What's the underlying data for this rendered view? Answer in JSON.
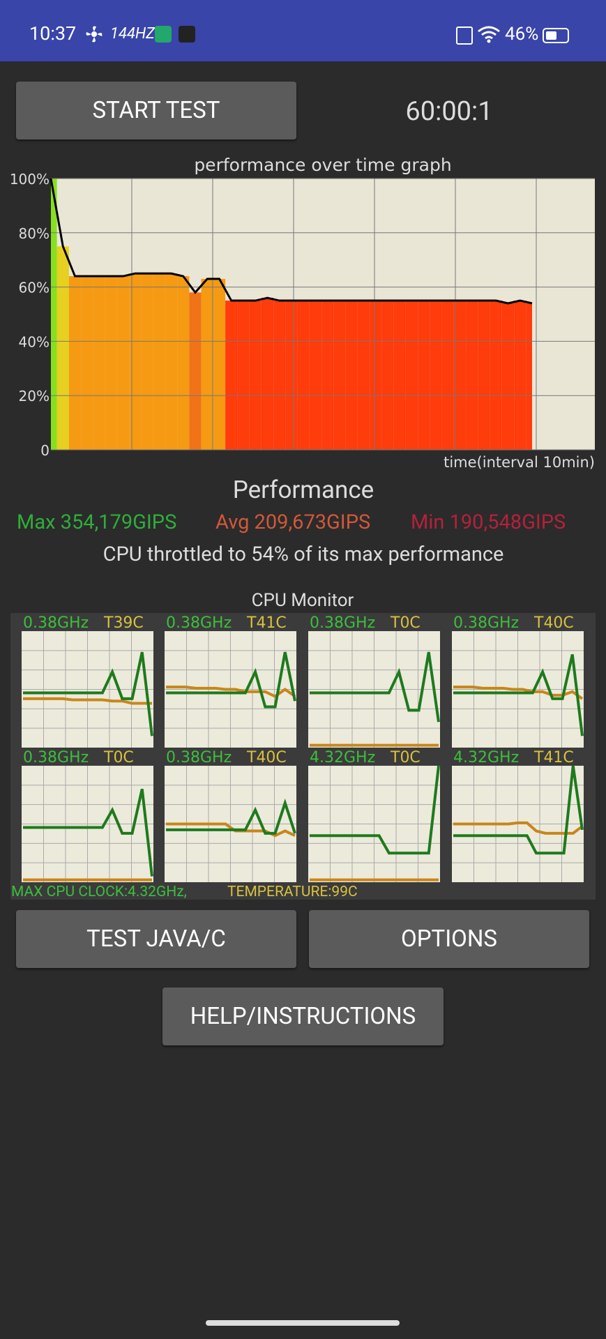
{
  "status_bar": {
    "time": "10:37",
    "refresh_rate": "144HZ",
    "battery": "46%"
  },
  "controls": {
    "start_button": "START TEST",
    "timer": "60:00:1"
  },
  "chart_data": {
    "type": "line",
    "title": "performance over time graph",
    "x_label": "time(interval 10min)",
    "ylim": [
      0,
      100
    ],
    "yticks": [
      0,
      {
        "value": 20,
        "label": "20%"
      },
      {
        "value": 40,
        "label": "40%"
      },
      {
        "value": 60,
        "label": "60%"
      },
      {
        "value": 80,
        "label": "80%"
      },
      {
        "value": 100,
        "label": "100%"
      }
    ],
    "grid": true,
    "color": "#000000",
    "values": [
      100,
      75,
      64,
      64,
      64,
      64,
      64,
      65,
      65,
      65,
      65,
      64,
      58,
      63,
      63,
      55,
      55,
      55,
      56,
      55,
      55,
      55,
      55,
      55,
      55,
      55,
      55,
      55,
      55,
      55,
      55,
      55,
      55,
      55,
      55,
      55,
      55,
      55,
      54,
      55,
      54
    ]
  },
  "performance": {
    "heading": "Performance",
    "max": "Max 354,179GIPS",
    "avg": "Avg 209,673GIPS",
    "min": "Min 190,548GIPS",
    "summary": "CPU throttled to 54% of its max performance"
  },
  "cpu_monitor": {
    "title": "CPU Monitor",
    "cores": [
      {
        "clock": "0.38GHz",
        "temp": "T39C",
        "clock_trace": [
          47,
          47,
          47,
          47,
          47,
          47,
          47,
          47,
          47,
          65,
          42,
          42,
          82,
          10
        ],
        "temp_trace": [
          42,
          42,
          42,
          42,
          42,
          41,
          41,
          41,
          41,
          40,
          40,
          38,
          38,
          38
        ]
      },
      {
        "clock": "0.38GHz",
        "temp": "T41C",
        "clock_trace": [
          47,
          47,
          47,
          47,
          47,
          47,
          47,
          47,
          47,
          65,
          35,
          35,
          82,
          40
        ],
        "temp_trace": [
          52,
          52,
          52,
          51,
          51,
          51,
          50,
          50,
          48,
          48,
          48,
          44,
          50,
          44
        ]
      },
      {
        "clock": "0.38GHz",
        "temp": "T0C",
        "clock_trace": [
          47,
          47,
          47,
          47,
          47,
          47,
          47,
          47,
          47,
          65,
          32,
          32,
          82,
          22
        ],
        "temp_trace": [
          2,
          2,
          2,
          2,
          2,
          2,
          2,
          2,
          2,
          2,
          2,
          2,
          2,
          2
        ]
      },
      {
        "clock": "0.38GHz",
        "temp": "T40C",
        "clock_trace": [
          47,
          47,
          47,
          47,
          47,
          47,
          47,
          47,
          47,
          65,
          42,
          42,
          80,
          10
        ],
        "temp_trace": [
          52,
          52,
          52,
          51,
          51,
          51,
          50,
          50,
          48,
          48,
          45,
          45,
          48,
          42
        ]
      },
      {
        "clock": "0.38GHz",
        "temp": "T0C",
        "clock_trace": [
          47,
          47,
          47,
          47,
          47,
          47,
          47,
          47,
          47,
          62,
          42,
          42,
          80,
          5
        ],
        "temp_trace": [
          2,
          2,
          2,
          2,
          2,
          2,
          2,
          2,
          2,
          2,
          2,
          2,
          2,
          2
        ]
      },
      {
        "clock": "0.38GHz",
        "temp": "T40C",
        "clock_trace": [
          45,
          45,
          45,
          45,
          45,
          45,
          45,
          45,
          45,
          62,
          42,
          42,
          68,
          42
        ],
        "temp_trace": [
          50,
          50,
          50,
          50,
          50,
          50,
          50,
          44,
          44,
          44,
          44,
          40,
          44,
          40
        ]
      },
      {
        "clock": "4.32GHz",
        "temp": "T0C",
        "clock_trace": [
          40,
          40,
          40,
          40,
          40,
          40,
          40,
          40,
          25,
          25,
          25,
          25,
          25,
          100
        ],
        "temp_trace": [
          2,
          2,
          2,
          2,
          2,
          2,
          2,
          2,
          2,
          2,
          2,
          2,
          2,
          2
        ]
      },
      {
        "clock": "4.32GHz",
        "temp": "T41C",
        "clock_trace": [
          40,
          40,
          40,
          40,
          40,
          40,
          40,
          40,
          40,
          25,
          25,
          25,
          25,
          100,
          45
        ],
        "temp_trace": [
          50,
          50,
          50,
          50,
          50,
          50,
          50,
          51,
          51,
          44,
          42,
          42,
          42,
          42,
          48
        ]
      }
    ],
    "max_clock": "MAX CPU CLOCK:4.32GHz,",
    "max_temp": "TEMPERATURE:99C"
  },
  "buttons": {
    "test": "TEST JAVA/C",
    "options": "OPTIONS",
    "help": "HELP/INSTRUCTIONS"
  }
}
